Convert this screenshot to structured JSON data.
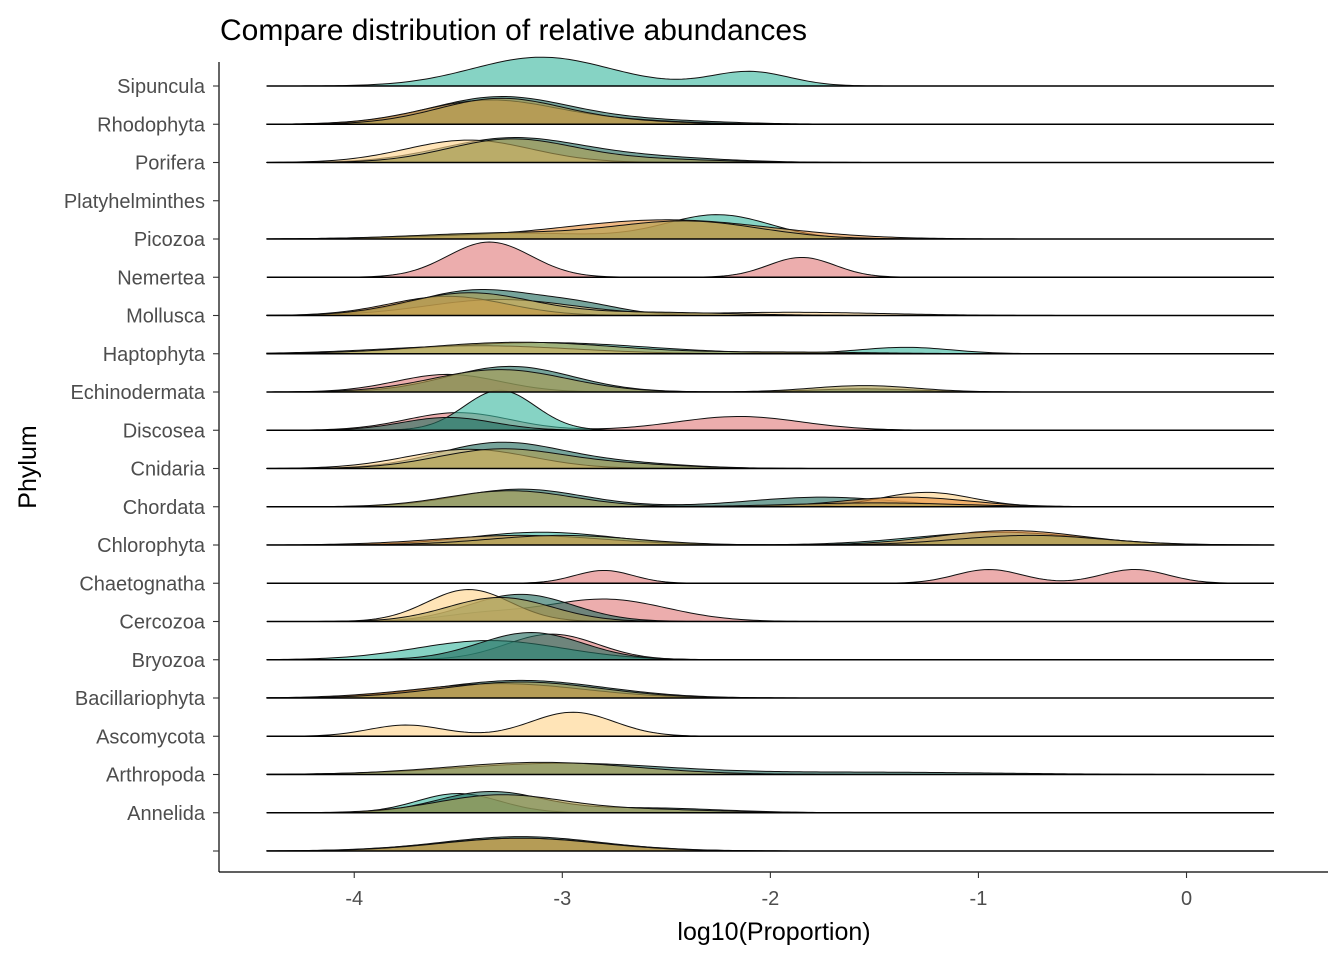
{
  "chart_data": {
    "type": "ridgeline",
    "title": "Compare distribution of relative abundances",
    "xlabel": "log10(Proportion)",
    "ylabel": "Phylum",
    "x_ticks": [
      -4,
      -3,
      -2,
      -1,
      0
    ],
    "x_tick_labels": [
      "-4",
      "-3",
      "-2",
      "-1",
      "0"
    ],
    "xlim": [
      -4.65,
      0.68
    ],
    "density_range": [
      -4.42,
      0.42
    ],
    "grid": false,
    "legend": "none",
    "series_colors": {
      "A": "#e07b7b",
      "B": "#3bb8a0",
      "C": "#226c5e",
      "D": "#f2a830",
      "E": "#ffd48a",
      "F": "#e88f3a",
      "G": "#b0a050"
    },
    "categories": [
      "Sipuncula",
      "Rhodophyta",
      "Porifera",
      "Platyhelminthes",
      "Picozoa",
      "Nemertea",
      "Mollusca",
      "Haptophyta",
      "Echinodermata",
      "Discosea",
      "Cnidaria",
      "Chordata",
      "Chlorophyta",
      "Chaetognatha",
      "Cercozoa",
      "Bryozoa",
      "Bacillariophyta",
      "Ascomycota",
      "Arthropoda",
      "Annelida",
      ""
    ],
    "ridges": [
      {
        "category": "Sipuncula",
        "curves": [
          {
            "color": "B",
            "peaks": [
              [
                -3.1,
                0.33,
                0.9
              ],
              [
                -2.1,
                0.19,
                0.45
              ]
            ]
          }
        ]
      },
      {
        "category": "Rhodophyta",
        "curves": [
          {
            "color": "C",
            "peaks": [
              [
                -3.3,
                0.33,
                0.85
              ],
              [
                -2.6,
                0.35,
                0.12
              ]
            ]
          },
          {
            "color": "F",
            "peaks": [
              [
                -3.35,
                0.32,
                0.75
              ],
              [
                -2.7,
                0.3,
                0.1
              ]
            ]
          },
          {
            "color": "G",
            "peaks": [
              [
                -3.3,
                0.3,
                0.8
              ],
              [
                -2.7,
                0.3,
                0.08
              ]
            ]
          }
        ]
      },
      {
        "category": "Porifera",
        "curves": [
          {
            "color": "C",
            "peaks": [
              [
                -3.25,
                0.33,
                0.75
              ],
              [
                -2.6,
                0.35,
                0.16
              ]
            ]
          },
          {
            "color": "E",
            "peaks": [
              [
                -3.45,
                0.3,
                0.7
              ]
            ]
          },
          {
            "color": "G",
            "peaks": [
              [
                -3.25,
                0.3,
                0.72
              ],
              [
                -2.6,
                0.35,
                0.1
              ]
            ]
          }
        ]
      },
      {
        "category": "Platyhelminthes",
        "curves": []
      },
      {
        "category": "Picozoa",
        "curves": [
          {
            "color": "B",
            "peaks": [
              [
                -2.25,
                0.25,
                0.75
              ],
              [
                -3.2,
                0.4,
                0.18
              ]
            ]
          },
          {
            "color": "F",
            "peaks": [
              [
                -2.5,
                0.5,
                0.6
              ],
              [
                -3.7,
                0.3,
                0.05
              ]
            ]
          },
          {
            "color": "G",
            "peaks": [
              [
                -2.4,
                0.35,
                0.55
              ],
              [
                -3.3,
                0.4,
                0.18
              ]
            ]
          }
        ]
      },
      {
        "category": "Nemertea",
        "curves": [
          {
            "color": "A",
            "peaks": [
              [
                -3.35,
                0.2,
                1.1
              ],
              [
                -1.85,
                0.16,
                0.62
              ]
            ]
          }
        ]
      },
      {
        "category": "Mollusca",
        "curves": [
          {
            "color": "C",
            "peaks": [
              [
                -3.4,
                0.3,
                0.8
              ],
              [
                -2.9,
                0.2,
                0.25
              ]
            ]
          },
          {
            "color": "E",
            "peaks": [
              [
                -3.3,
                0.35,
                0.5
              ],
              [
                -1.9,
                0.45,
                0.1
              ]
            ]
          },
          {
            "color": "F",
            "peaks": [
              [
                -3.55,
                0.28,
                0.6
              ]
            ]
          },
          {
            "color": "G",
            "peaks": [
              [
                -3.45,
                0.3,
                0.7
              ],
              [
                -2.6,
                0.4,
                0.1
              ]
            ]
          }
        ]
      },
      {
        "category": "Haptophyta",
        "curves": [
          {
            "color": "B",
            "peaks": [
              [
                -3.1,
                0.5,
                0.35
              ],
              [
                -1.35,
                0.22,
                0.2
              ]
            ]
          },
          {
            "color": "E",
            "peaks": [
              [
                -3.4,
                0.45,
                0.25
              ]
            ]
          },
          {
            "color": "G",
            "peaks": [
              [
                -3.2,
                0.45,
                0.36
              ],
              [
                -1.9,
                0.4,
                0.05
              ]
            ]
          }
        ]
      },
      {
        "category": "Echinodermata",
        "curves": [
          {
            "color": "A",
            "peaks": [
              [
                -3.55,
                0.25,
                0.55
              ]
            ]
          },
          {
            "color": "C",
            "peaks": [
              [
                -3.25,
                0.3,
                0.8
              ],
              [
                -1.55,
                0.25,
                0.1
              ]
            ]
          },
          {
            "color": "G",
            "peaks": [
              [
                -3.3,
                0.32,
                0.7
              ],
              [
                -1.55,
                0.25,
                0.2
              ]
            ]
          }
        ]
      },
      {
        "category": "Discosea",
        "curves": [
          {
            "color": "A",
            "peaks": [
              [
                -3.5,
                0.25,
                0.55
              ],
              [
                -2.15,
                0.3,
                0.43
              ]
            ]
          },
          {
            "color": "B",
            "peaks": [
              [
                -3.3,
                0.17,
                1.25
              ]
            ]
          },
          {
            "color": "C",
            "peaks": [
              [
                -3.55,
                0.22,
                0.4
              ]
            ]
          }
        ]
      },
      {
        "category": "Cnidaria",
        "curves": [
          {
            "color": "C",
            "peaks": [
              [
                -3.3,
                0.3,
                0.8
              ],
              [
                -2.7,
                0.3,
                0.15
              ]
            ]
          },
          {
            "color": "E",
            "peaks": [
              [
                -3.45,
                0.3,
                0.6
              ]
            ]
          },
          {
            "color": "G",
            "peaks": [
              [
                -3.3,
                0.3,
                0.6
              ],
              [
                -2.7,
                0.3,
                0.12
              ]
            ]
          }
        ]
      },
      {
        "category": "Chordata",
        "curves": [
          {
            "color": "C",
            "peaks": [
              [
                -3.2,
                0.3,
                0.55
              ],
              [
                -1.75,
                0.35,
                0.3
              ]
            ]
          },
          {
            "color": "E",
            "peaks": [
              [
                -1.25,
                0.22,
                0.45
              ]
            ]
          },
          {
            "color": "F",
            "peaks": [
              [
                -1.35,
                0.3,
                0.3
              ]
            ]
          },
          {
            "color": "G",
            "peaks": [
              [
                -3.25,
                0.3,
                0.5
              ],
              [
                -1.5,
                0.4,
                0.12
              ]
            ]
          }
        ]
      },
      {
        "category": "Chlorophyta",
        "curves": [
          {
            "color": "B",
            "peaks": [
              [
                -3.1,
                0.35,
                0.4
              ],
              [
                -0.9,
                0.4,
                0.4
              ]
            ]
          },
          {
            "color": "F",
            "peaks": [
              [
                -3.2,
                0.4,
                0.3
              ],
              [
                -0.85,
                0.35,
                0.45
              ]
            ]
          },
          {
            "color": "G",
            "peaks": [
              [
                -3.0,
                0.35,
                0.3
              ],
              [
                -0.75,
                0.35,
                0.3
              ]
            ]
          }
        ]
      },
      {
        "category": "Chaetognatha",
        "curves": [
          {
            "color": "A",
            "peaks": [
              [
                -2.8,
                0.14,
                0.4
              ],
              [
                -0.95,
                0.16,
                0.43
              ],
              [
                -0.25,
                0.16,
                0.43
              ]
            ]
          }
        ]
      },
      {
        "category": "Cercozoa",
        "curves": [
          {
            "color": "A",
            "peaks": [
              [
                -2.8,
                0.3,
                0.7
              ],
              [
                -3.4,
                0.2,
                0.2
              ]
            ]
          },
          {
            "color": "C",
            "peaks": [
              [
                -3.2,
                0.25,
                0.85
              ]
            ]
          },
          {
            "color": "E",
            "peaks": [
              [
                -3.45,
                0.2,
                1.0
              ]
            ]
          },
          {
            "color": "G",
            "peaks": [
              [
                -3.3,
                0.25,
                0.75
              ]
            ]
          }
        ]
      },
      {
        "category": "Bryozoa",
        "curves": [
          {
            "color": "A",
            "peaks": [
              [
                -3.05,
                0.22,
                0.8
              ]
            ]
          },
          {
            "color": "B",
            "peaks": [
              [
                -3.35,
                0.35,
                0.6
              ]
            ]
          },
          {
            "color": "C",
            "peaks": [
              [
                -3.15,
                0.25,
                0.85
              ]
            ]
          }
        ]
      },
      {
        "category": "Bacillariophyta",
        "curves": [
          {
            "color": "C",
            "peaks": [
              [
                -3.2,
                0.4,
                0.55
              ]
            ]
          },
          {
            "color": "F",
            "peaks": [
              [
                -3.3,
                0.4,
                0.45
              ]
            ]
          },
          {
            "color": "G",
            "peaks": [
              [
                -3.2,
                0.38,
                0.5
              ]
            ]
          }
        ]
      },
      {
        "category": "Ascomycota",
        "curves": [
          {
            "color": "E",
            "peaks": [
              [
                -3.75,
                0.18,
                0.35
              ],
              [
                -2.95,
                0.2,
                0.75
              ]
            ]
          }
        ]
      },
      {
        "category": "Arthropoda",
        "curves": [
          {
            "color": "C",
            "peaks": [
              [
                -3.0,
                0.5,
                0.35
              ],
              [
                -1.5,
                0.6,
                0.07
              ]
            ]
          },
          {
            "color": "G",
            "peaks": [
              [
                -3.1,
                0.45,
                0.38
              ]
            ]
          }
        ]
      },
      {
        "category": "Annelida",
        "curves": [
          {
            "color": "B",
            "peaks": [
              [
                -3.5,
                0.2,
                0.6
              ]
            ]
          },
          {
            "color": "C",
            "peaks": [
              [
                -3.35,
                0.25,
                0.65
              ],
              [
                -2.6,
                0.35,
                0.15
              ]
            ]
          },
          {
            "color": "G",
            "peaks": [
              [
                -3.3,
                0.3,
                0.55
              ],
              [
                -2.6,
                0.35,
                0.1
              ]
            ]
          }
        ]
      },
      {
        "category": "",
        "curves": [
          {
            "color": "C",
            "peaks": [
              [
                -3.2,
                0.38,
                0.45
              ]
            ]
          },
          {
            "color": "F",
            "peaks": [
              [
                -3.2,
                0.4,
                0.4
              ]
            ]
          },
          {
            "color": "G",
            "peaks": [
              [
                -3.2,
                0.38,
                0.4
              ]
            ]
          }
        ]
      }
    ]
  }
}
